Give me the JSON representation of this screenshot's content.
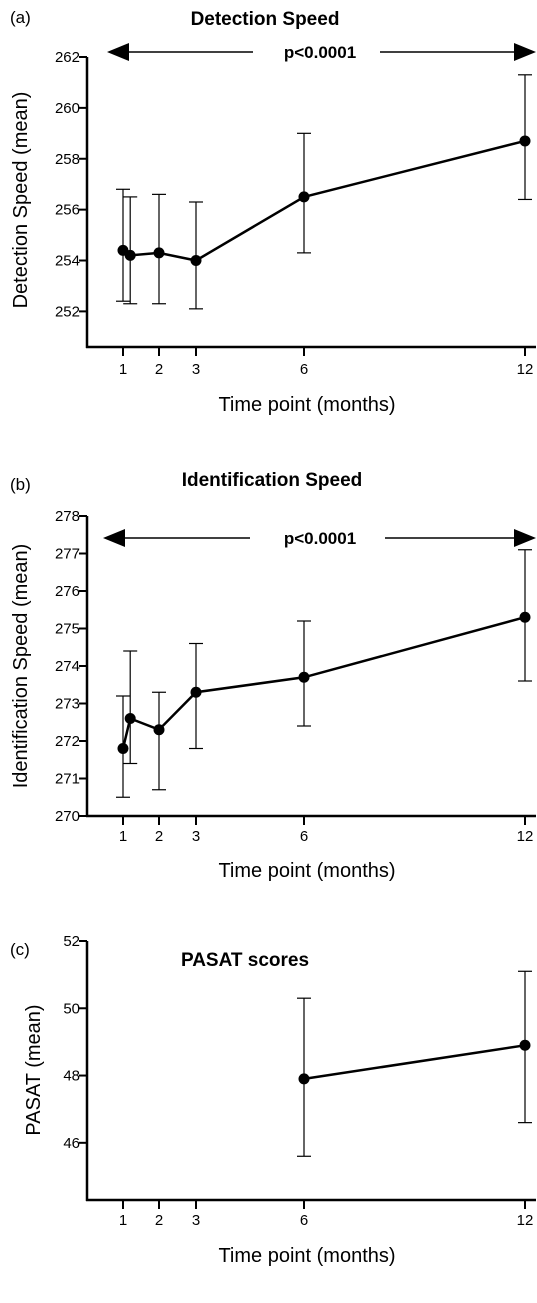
{
  "chart_data": [
    {
      "type": "line",
      "panel_label": "(a)",
      "title": "Detection Speed",
      "xlabel": "Time point (months)",
      "ylabel": "Detection Speed (mean)",
      "x_ticks": [
        1,
        2,
        3,
        6,
        12
      ],
      "y_ticks": [
        252,
        254,
        256,
        258,
        260,
        262
      ],
      "ylim": [
        250.6,
        262
      ],
      "annotation": "p<0.0001",
      "points": [
        {
          "x": 1,
          "y": 254.4,
          "err_low": 252.4,
          "err_high": 256.8
        },
        {
          "x": 1.2,
          "y": 254.2,
          "err_low": 252.3,
          "err_high": 256.5
        },
        {
          "x": 2,
          "y": 254.3,
          "err_low": 252.3,
          "err_high": 256.6
        },
        {
          "x": 3,
          "y": 254.0,
          "err_low": 252.1,
          "err_high": 256.3
        },
        {
          "x": 6,
          "y": 256.5,
          "err_low": 254.3,
          "err_high": 259.0
        },
        {
          "x": 12,
          "y": 258.7,
          "err_low": 256.4,
          "err_high": 261.3
        }
      ]
    },
    {
      "type": "line",
      "panel_label": "(b)",
      "title": "Identification Speed",
      "xlabel": "Time point (months)",
      "ylabel": "Identification Speed (mean)",
      "x_ticks": [
        1,
        2,
        3,
        6,
        12
      ],
      "y_ticks": [
        270,
        271,
        272,
        273,
        274,
        275,
        276,
        277,
        278
      ],
      "ylim": [
        270,
        278
      ],
      "annotation": "p<0.0001",
      "points": [
        {
          "x": 1,
          "y": 271.8,
          "err_low": 270.5,
          "err_high": 273.2
        },
        {
          "x": 1.2,
          "y": 272.6,
          "err_low": 271.4,
          "err_high": 274.4
        },
        {
          "x": 2,
          "y": 272.3,
          "err_low": 270.7,
          "err_high": 273.3
        },
        {
          "x": 3,
          "y": 273.3,
          "err_low": 271.8,
          "err_high": 274.6
        },
        {
          "x": 6,
          "y": 273.7,
          "err_low": 272.4,
          "err_high": 275.2
        },
        {
          "x": 12,
          "y": 275.3,
          "err_low": 273.6,
          "err_high": 277.1
        }
      ]
    },
    {
      "type": "line",
      "panel_label": "(c)",
      "title": "PASAT scores",
      "xlabel": "Time point (months)",
      "ylabel": "PASAT (mean)",
      "x_ticks": [
        1,
        2,
        3,
        6,
        12
      ],
      "y_ticks": [
        46,
        48,
        50,
        52
      ],
      "ylim": [
        44.3,
        52
      ],
      "annotation": "",
      "points": [
        {
          "x": 6,
          "y": 47.9,
          "err_low": 45.6,
          "err_high": 50.3
        },
        {
          "x": 12,
          "y": 48.9,
          "err_low": 46.6,
          "err_high": 51.1
        }
      ]
    }
  ]
}
